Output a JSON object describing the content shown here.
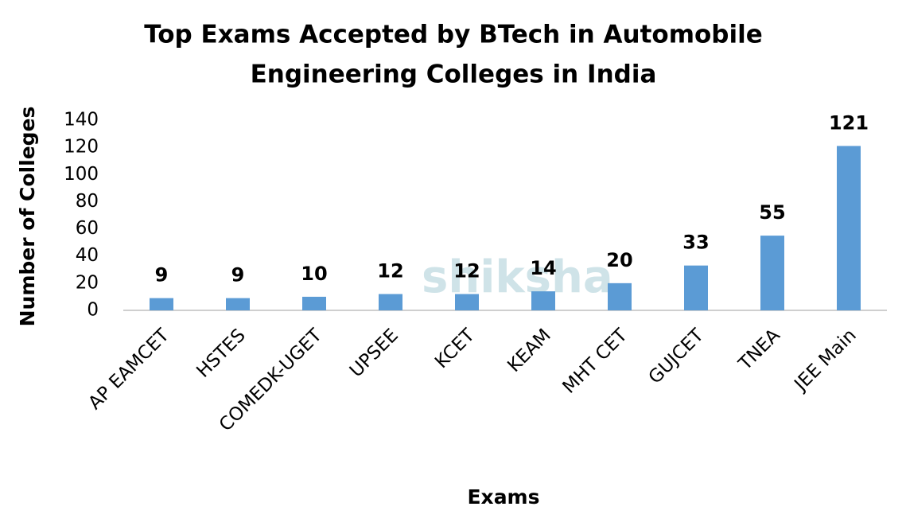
{
  "chart_data": {
    "type": "bar",
    "title": [
      "Top Exams Accepted by BTech in Automobile",
      "Engineering Colleges in India"
    ],
    "x_label": "Exams",
    "y_label": "Number of Colleges",
    "watermark": "shiksha",
    "categories": [
      "AP EAMCET",
      "HSTES",
      "COMEDK-UGET",
      "UPSEE",
      "KCET",
      "KEAM",
      "MHT CET",
      "GUJCET",
      "TNEA",
      "JEE Main"
    ],
    "values": [
      9,
      9,
      10,
      12,
      12,
      14,
      20,
      33,
      55,
      121
    ],
    "color": "#5b9bd5",
    "ylim": [
      0,
      140
    ],
    "yticks": [
      0,
      20,
      40,
      60,
      80,
      100,
      120,
      140
    ],
    "grid": false
  }
}
